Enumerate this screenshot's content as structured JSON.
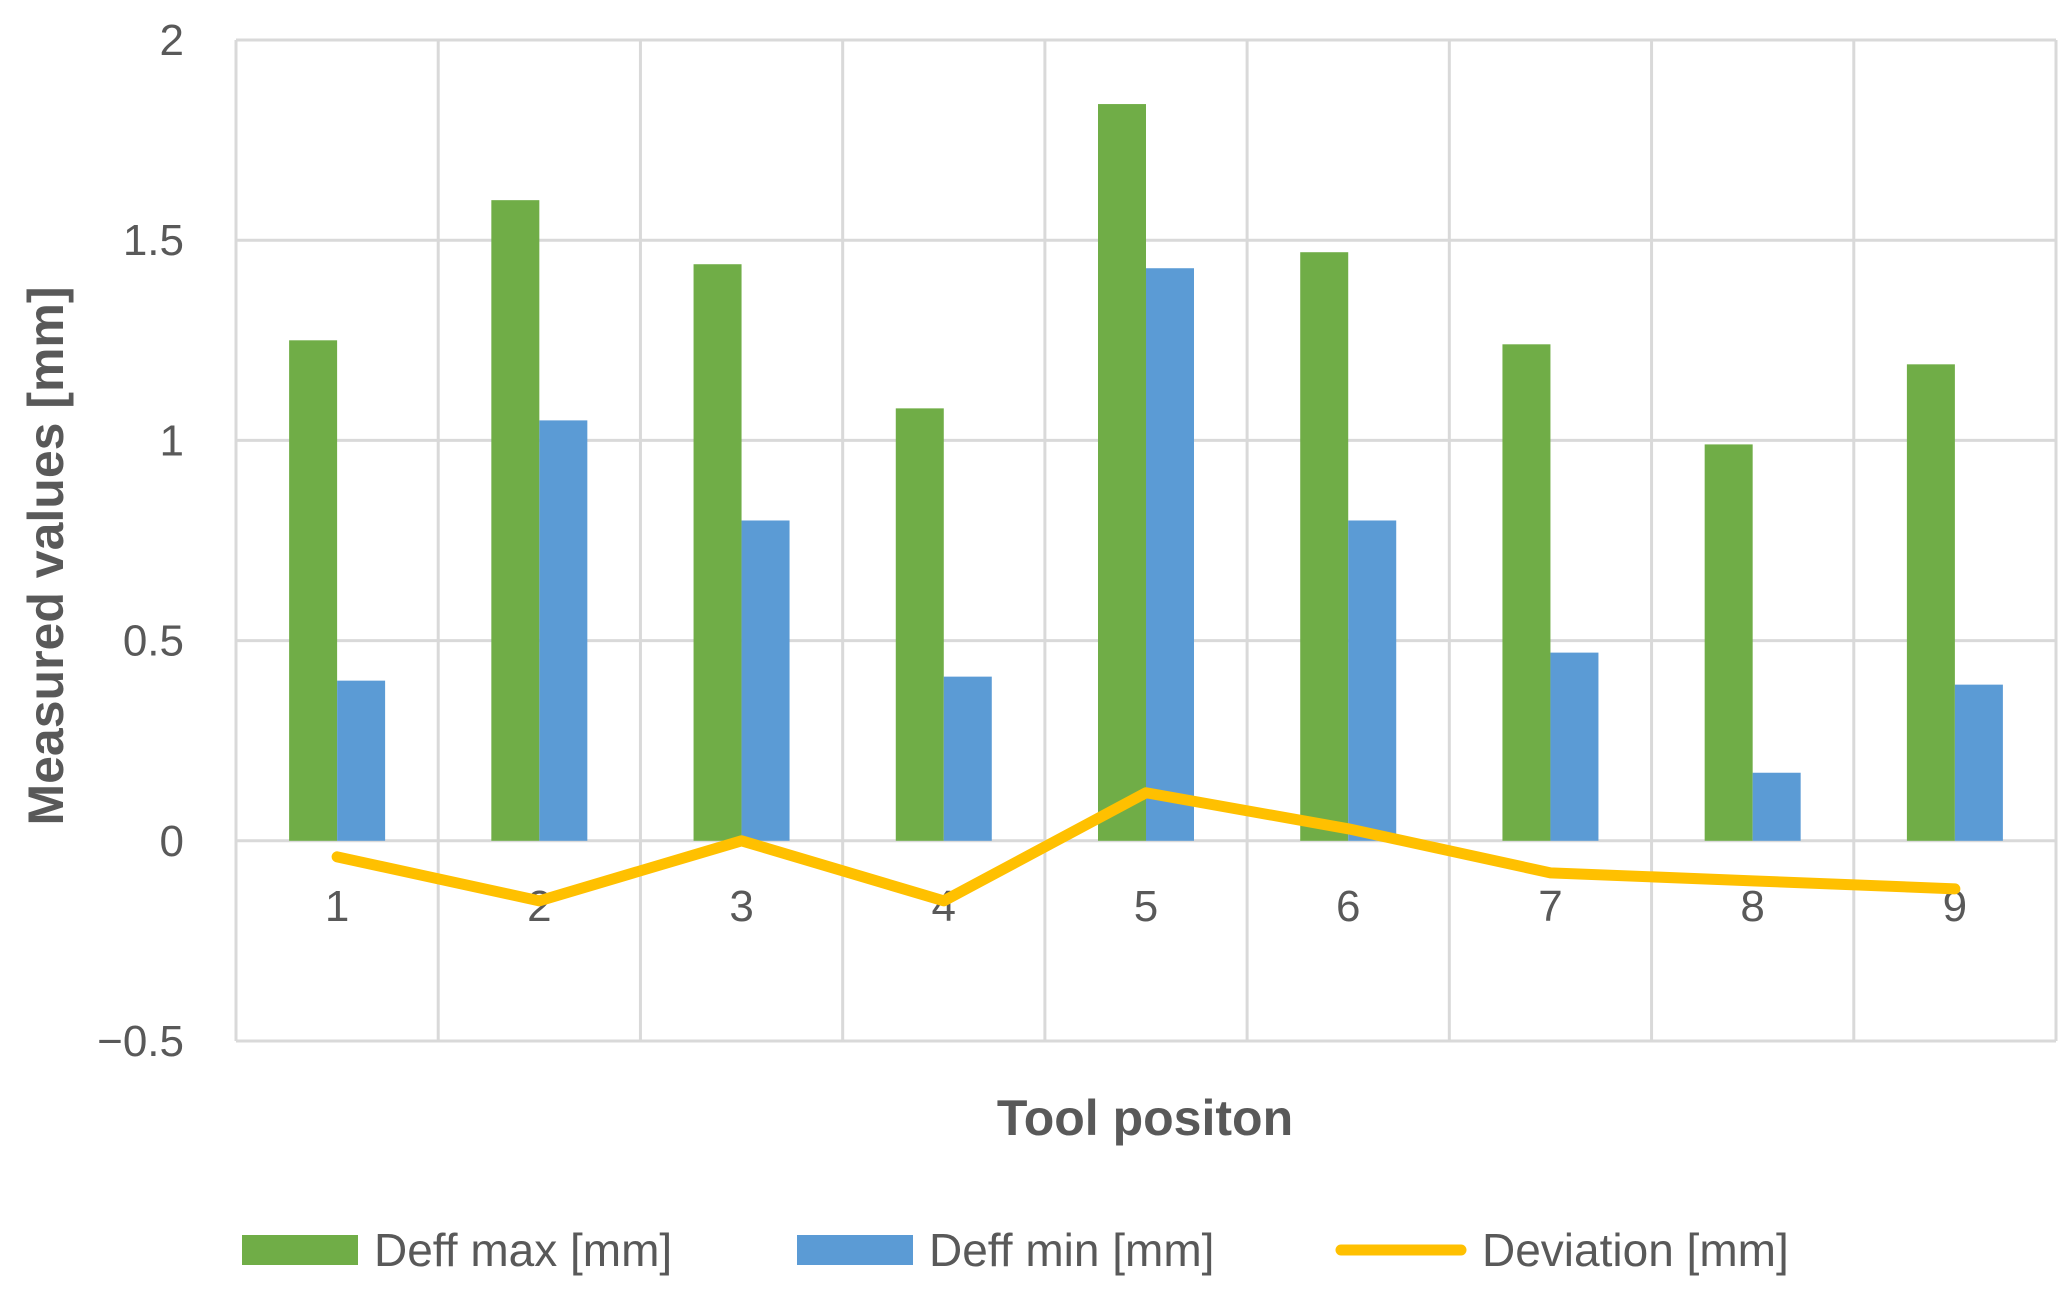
{
  "chart_data": {
    "type": "bar",
    "title": "",
    "xlabel": "Tool positon",
    "ylabel": "Measured values [mm]",
    "ylim": [
      -0.5,
      2
    ],
    "yticks": [
      2,
      1.5,
      1,
      0.5,
      0,
      -0.5
    ],
    "ytick_labels": [
      "2",
      "1.5",
      "1",
      "0.5",
      "0",
      "−0.5"
    ],
    "grid": true,
    "legend_position": "bottom",
    "categories": [
      "1",
      "2",
      "3",
      "4",
      "5",
      "6",
      "7",
      "8",
      "9"
    ],
    "series": [
      {
        "name": "Deff max [mm]",
        "kind": "bar",
        "color": "#70ad47",
        "values": [
          1.25,
          1.6,
          1.44,
          1.08,
          1.84,
          1.47,
          1.24,
          0.99,
          1.19
        ]
      },
      {
        "name": "Deff min [mm]",
        "kind": "bar",
        "color": "#5b9bd5",
        "values": [
          0.4,
          1.05,
          0.8,
          0.41,
          1.43,
          0.8,
          0.47,
          0.17,
          0.39
        ]
      },
      {
        "name": "Deviation [mm]",
        "kind": "line",
        "color": "#ffc000",
        "values": [
          -0.04,
          -0.15,
          0.0,
          -0.15,
          0.12,
          0.03,
          -0.08,
          -0.1,
          -0.12
        ]
      }
    ]
  }
}
